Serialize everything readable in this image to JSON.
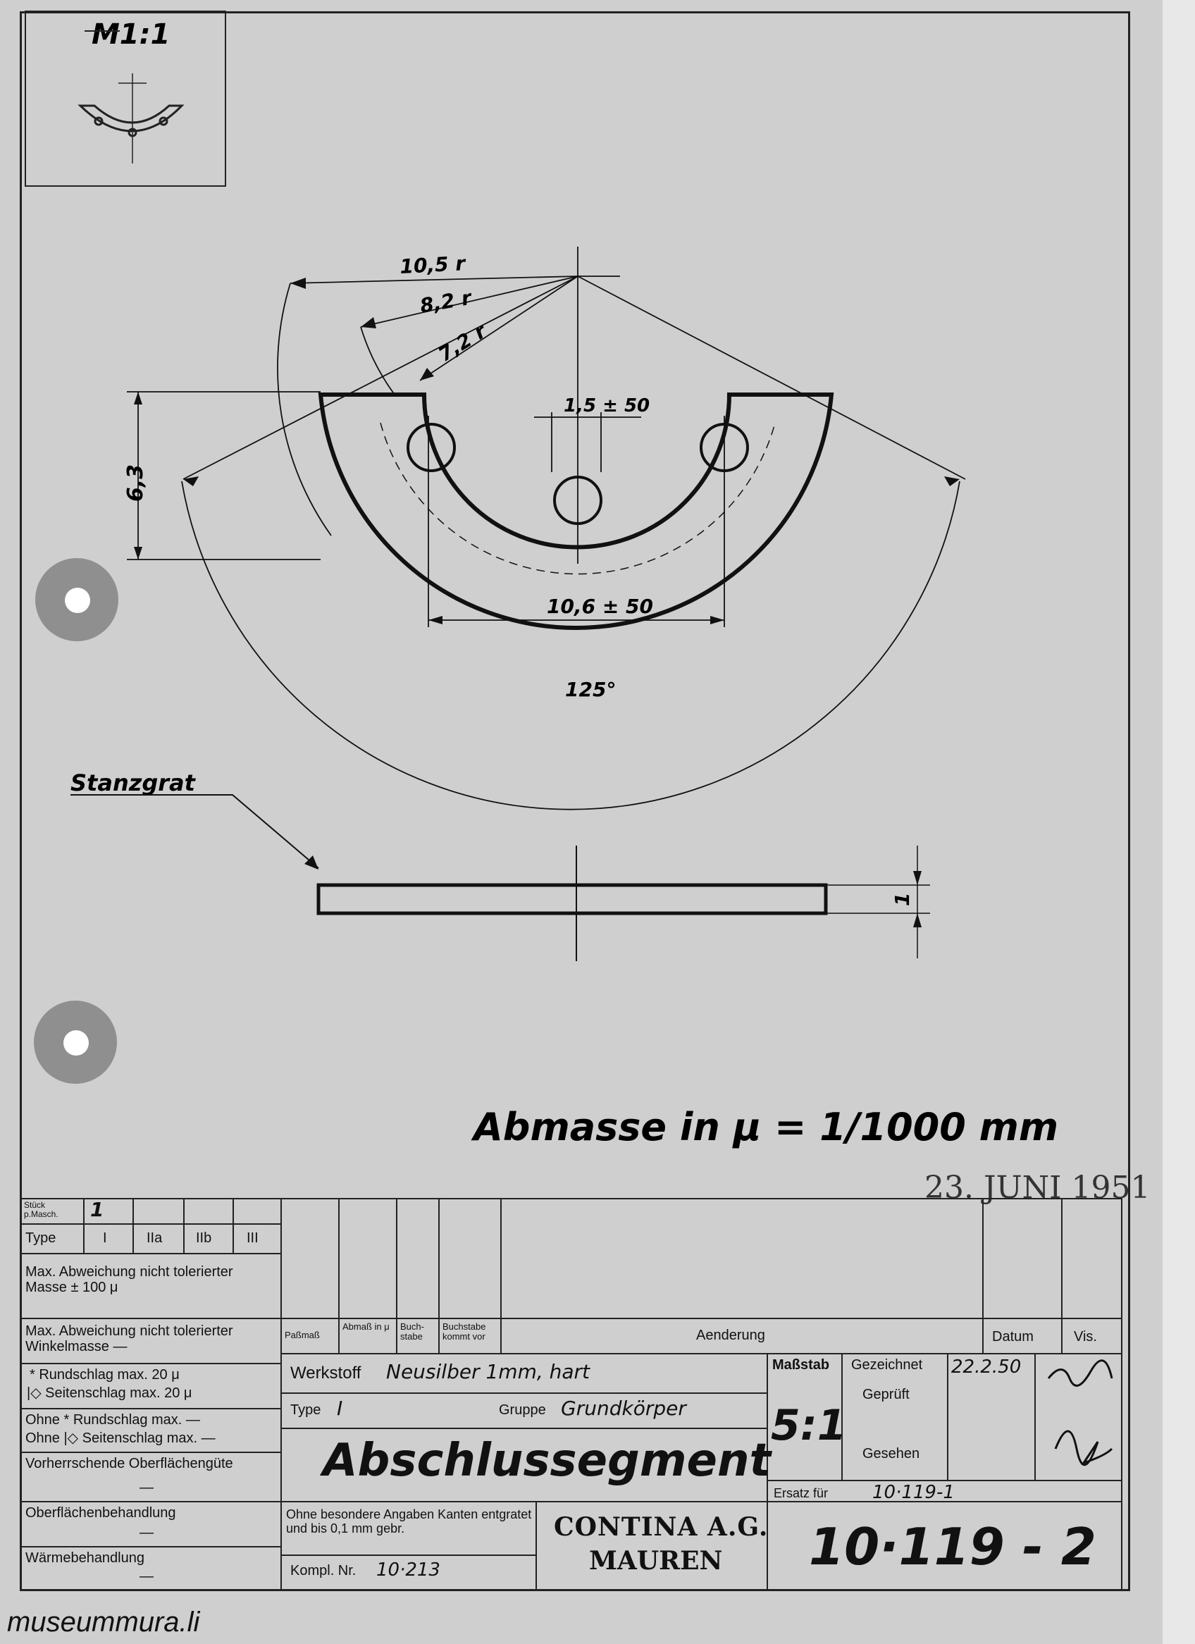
{
  "scale_box": {
    "label": "M1:1"
  },
  "dimensions": {
    "r1": "10,5 r",
    "r2": "8,2 r",
    "r3": "7,2 r",
    "hole_dim": "1,5 ± 50",
    "height": "6,3",
    "width": "10,6 ± 50",
    "angle": "125°",
    "thickness": "1"
  },
  "side_view": {
    "label": "Stanzgrat"
  },
  "note": "Abmasse in μ = 1/1000 mm",
  "stamp_date": "23. JUNI 1951",
  "title_block": {
    "stueck_label": "Stück p.Masch.",
    "stueck_value": "1",
    "type_label": "Type",
    "type_cols": [
      "I",
      "IIa",
      "IIb",
      "III"
    ],
    "max_abw_masse": "Max. Abweichung nicht tolerierter Masse ± 100 μ",
    "max_abw_winkel": "Max. Abweichung nicht tolerierter Winkelmasse —",
    "rundschlag": "* Rundschlag max. 20 μ",
    "seitenschlag": "|◇ Seitenschlag max. 20 μ",
    "ohne_rund": "Ohne * Rundschlag max. —",
    "ohne_seiten": "Ohne |◇ Seitenschlag max. —",
    "oberflaeche": "Vorherrschende Oberflächengüte",
    "oberflaeche_val": "—",
    "behandlung": "Oberflächenbehandlung",
    "behandlung_val": "—",
    "waerme": "Wärmebehandlung",
    "waerme_val": "—",
    "passmass": "Paßmaß",
    "abmass": "Abmaß in μ",
    "buchstabe": "Buch-stabe",
    "buchstabe_kommt": "Buchstabe kommt vor",
    "aenderung": "Aenderung",
    "datum": "Datum",
    "vis": "Vis.",
    "werkstoff_label": "Werkstoff",
    "werkstoff_value": "Neusilber 1mm, hart",
    "type2_label": "Type",
    "type2_value": "I",
    "gruppe_label": "Gruppe",
    "gruppe_value": "Grundkörper",
    "part_name": "Abschlussegment",
    "massstab_label": "Maßstab",
    "massstab_value": "5:1",
    "gezeichnet": "Gezeichnet",
    "gezeichnet_date": "22.2.50",
    "geprueft": "Geprüft",
    "gesehen": "Gesehen",
    "ersatz_label": "Ersatz für",
    "ersatz_value": "10·119-1",
    "kanten_note": "Ohne besondere Angaben Kanten entgratet und bis 0,1 mm gebr.",
    "kompl_label": "Kompl. Nr.",
    "kompl_value": "10·213",
    "company_line1": "CONTINA A.G.",
    "company_line2": "MAUREN",
    "drawing_no": "10·119 - 2"
  },
  "watermark": "museummura.li"
}
